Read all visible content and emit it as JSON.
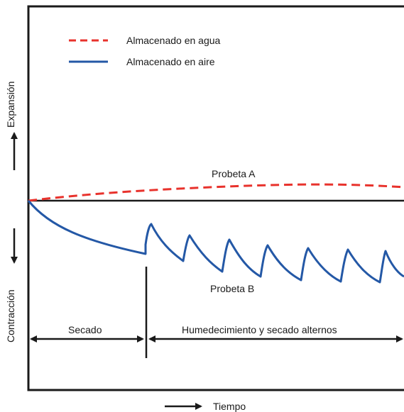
{
  "legend": [
    {
      "label": "Almacenado en agua",
      "color": "#e8322c",
      "style": "dashed"
    },
    {
      "label": "Almacenado en aire",
      "color": "#2458a6",
      "style": "solid"
    }
  ],
  "curve_labels": {
    "a": "Probeta A",
    "b": "Probeta B"
  },
  "axes": {
    "y_up": "Expansión",
    "y_down": "Contracción",
    "x": "Tiempo"
  },
  "phases": {
    "drying": "Secado",
    "alternating": "Humedecimiento y secado alternos"
  },
  "colors": {
    "frame": "#1a1a1a",
    "water": "#e8322c",
    "air": "#2458a6"
  }
}
